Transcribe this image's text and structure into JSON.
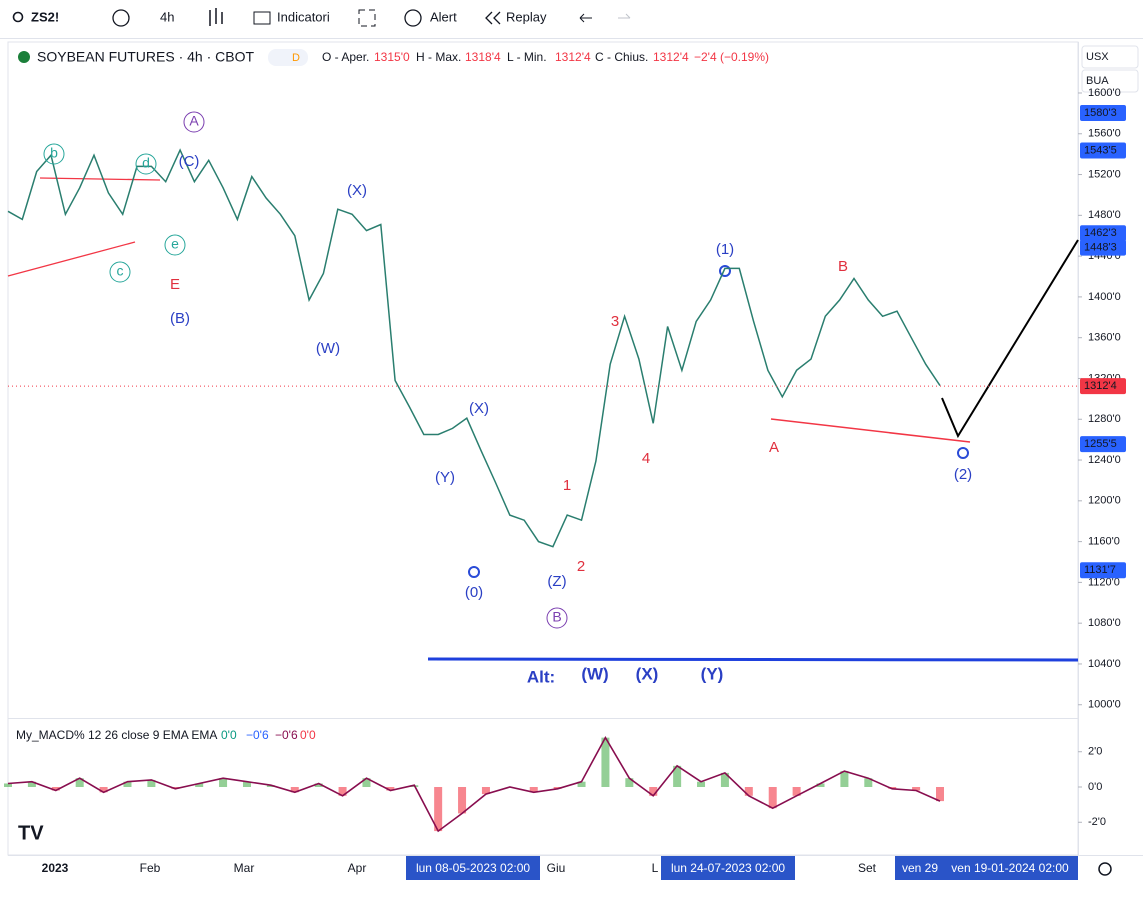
{
  "toolbar": {
    "symbol": "ZS2!",
    "interval": "4h",
    "indicators": "Indicatori",
    "alert": "Alert",
    "replay": "Replay"
  },
  "header": {
    "title": "SOYBEAN FUTURES · 4h · CBOT",
    "badge": "D",
    "open_label": "O - Aper.",
    "open": "1315'0",
    "high_label": "H - Max.",
    "high": "1318'4",
    "low_label": "L - Min.",
    "low": "1312'4",
    "close_label": "C - Chius.",
    "close": "1312'4",
    "change": "−2'4 (−0.19%)",
    "currency": "USX",
    "unit": "BUA"
  },
  "price": {
    "ylim": [
      987,
      1650
    ],
    "yticks": [
      {
        "value": 1600,
        "label": "1600'0"
      },
      {
        "value": 1560,
        "label": "1560'0"
      },
      {
        "value": 1520,
        "label": "1520'0"
      },
      {
        "value": 1480,
        "label": "1480'0"
      },
      {
        "value": 1440,
        "label": "1440'0"
      },
      {
        "value": 1400,
        "label": "1400'0"
      },
      {
        "value": 1360,
        "label": "1360'0"
      },
      {
        "value": 1320,
        "label": "1320'0"
      },
      {
        "value": 1280,
        "label": "1280'0"
      },
      {
        "value": 1240,
        "label": "1240'0"
      },
      {
        "value": 1200,
        "label": "1200'0"
      },
      {
        "value": 1160,
        "label": "1160'0"
      },
      {
        "value": 1120,
        "label": "1120'0"
      },
      {
        "value": 1080,
        "label": "1080'0"
      },
      {
        "value": 1040,
        "label": "1040'0"
      },
      {
        "value": 1000,
        "label": "1000'0"
      }
    ],
    "badges": [
      {
        "value": 1580.375,
        "label": "1580'3",
        "color": "#2962ff"
      },
      {
        "value": 1543.625,
        "label": "1543'5",
        "color": "#2962ff"
      },
      {
        "value": 1462.375,
        "label": "1462'3",
        "color": "#2962ff"
      },
      {
        "value": 1448.375,
        "label": "1448'3",
        "color": "#2962ff"
      },
      {
        "value": 1312.5,
        "label": "1312'4",
        "color": "#f23645"
      },
      {
        "value": 1255.625,
        "label": "1255'5",
        "color": "#2962ff"
      },
      {
        "value": 1131.875,
        "label": "1131'7",
        "color": "#2962ff"
      }
    ],
    "color": "#2a7e6f",
    "values": [
      1484,
      1476,
      1523,
      1539,
      1481,
      1507,
      1539,
      1502,
      1481,
      1528,
      1528,
      1513,
      1544,
      1513,
      1534,
      1507,
      1476,
      1518,
      1497,
      1481,
      1460,
      1397,
      1423,
      1486,
      1481,
      1465,
      1471,
      1318,
      1292,
      1265,
      1265,
      1271,
      1281,
      1249,
      1218,
      1186,
      1181,
      1160,
      1155,
      1186,
      1181,
      1239,
      1334,
      1381,
      1339,
      1276,
      1371,
      1328,
      1376,
      1397,
      1428,
      1428,
      1376,
      1328,
      1302,
      1328,
      1339,
      1381,
      1397,
      1418,
      1397,
      1381,
      1386,
      1360,
      1334,
      1313
    ]
  },
  "waves": {
    "b": "b",
    "d": "d",
    "c": "c",
    "e": "e",
    "A_circ": "A",
    "B_circ": "B",
    "C1": "(C)",
    "B1": "(B)",
    "X1": "(X)",
    "W1": "(W)",
    "X2": "(X)",
    "Y1": "(Y)",
    "Z1": "(Z)",
    "zero": "(0)",
    "one": "(1)",
    "two": "(2)",
    "E": "E",
    "r3": "3",
    "r1": "1",
    "r2": "2",
    "r4": "4",
    "rA": "A",
    "rB": "B",
    "alt": "Alt:",
    "altW": "(W)",
    "altX": "(X)",
    "altY": "(Y)"
  },
  "macd": {
    "label": "My_MACD% 12 26 close 9 EMA EMA",
    "v1": "0'0",
    "v2": "−0'6",
    "v3": "−0'6",
    "v4": "0'0",
    "ylim": [
      -3.8,
      3.8
    ],
    "yticks": [
      {
        "value": 2,
        "label": "2'0"
      },
      {
        "value": 0,
        "label": "0'0"
      },
      {
        "value": -2,
        "label": "-2'0"
      }
    ],
    "color": "#880e4f",
    "values": [
      0.2,
      0.3,
      -0.2,
      0.5,
      -0.3,
      0.3,
      0.4,
      -0.1,
      0.2,
      0.5,
      0.3,
      0.1,
      -0.3,
      0.2,
      -0.5,
      0.5,
      -0.2,
      0.1,
      -2.5,
      -1.5,
      -0.4,
      0,
      -0.3,
      -0.1,
      0.3,
      2.8,
      0.5,
      -0.5,
      1.2,
      0.3,
      0.8,
      -0.5,
      -1.2,
      -0.5,
      0.2,
      0.9,
      0.5,
      -0.1,
      -0.2,
      -0.8
    ]
  },
  "time": {
    "t2023": "2023",
    "feb": "Feb",
    "mar": "Mar",
    "apr": "Apr",
    "cursor1": "lun 08-05-2023   02:00",
    "giu": "Giu",
    "l": "L",
    "cursor2": "lun 24-07-2023   02:00",
    "set": "Set",
    "ven": "ven 29",
    "cursor3": "ven 19-01-2024   02:00"
  }
}
